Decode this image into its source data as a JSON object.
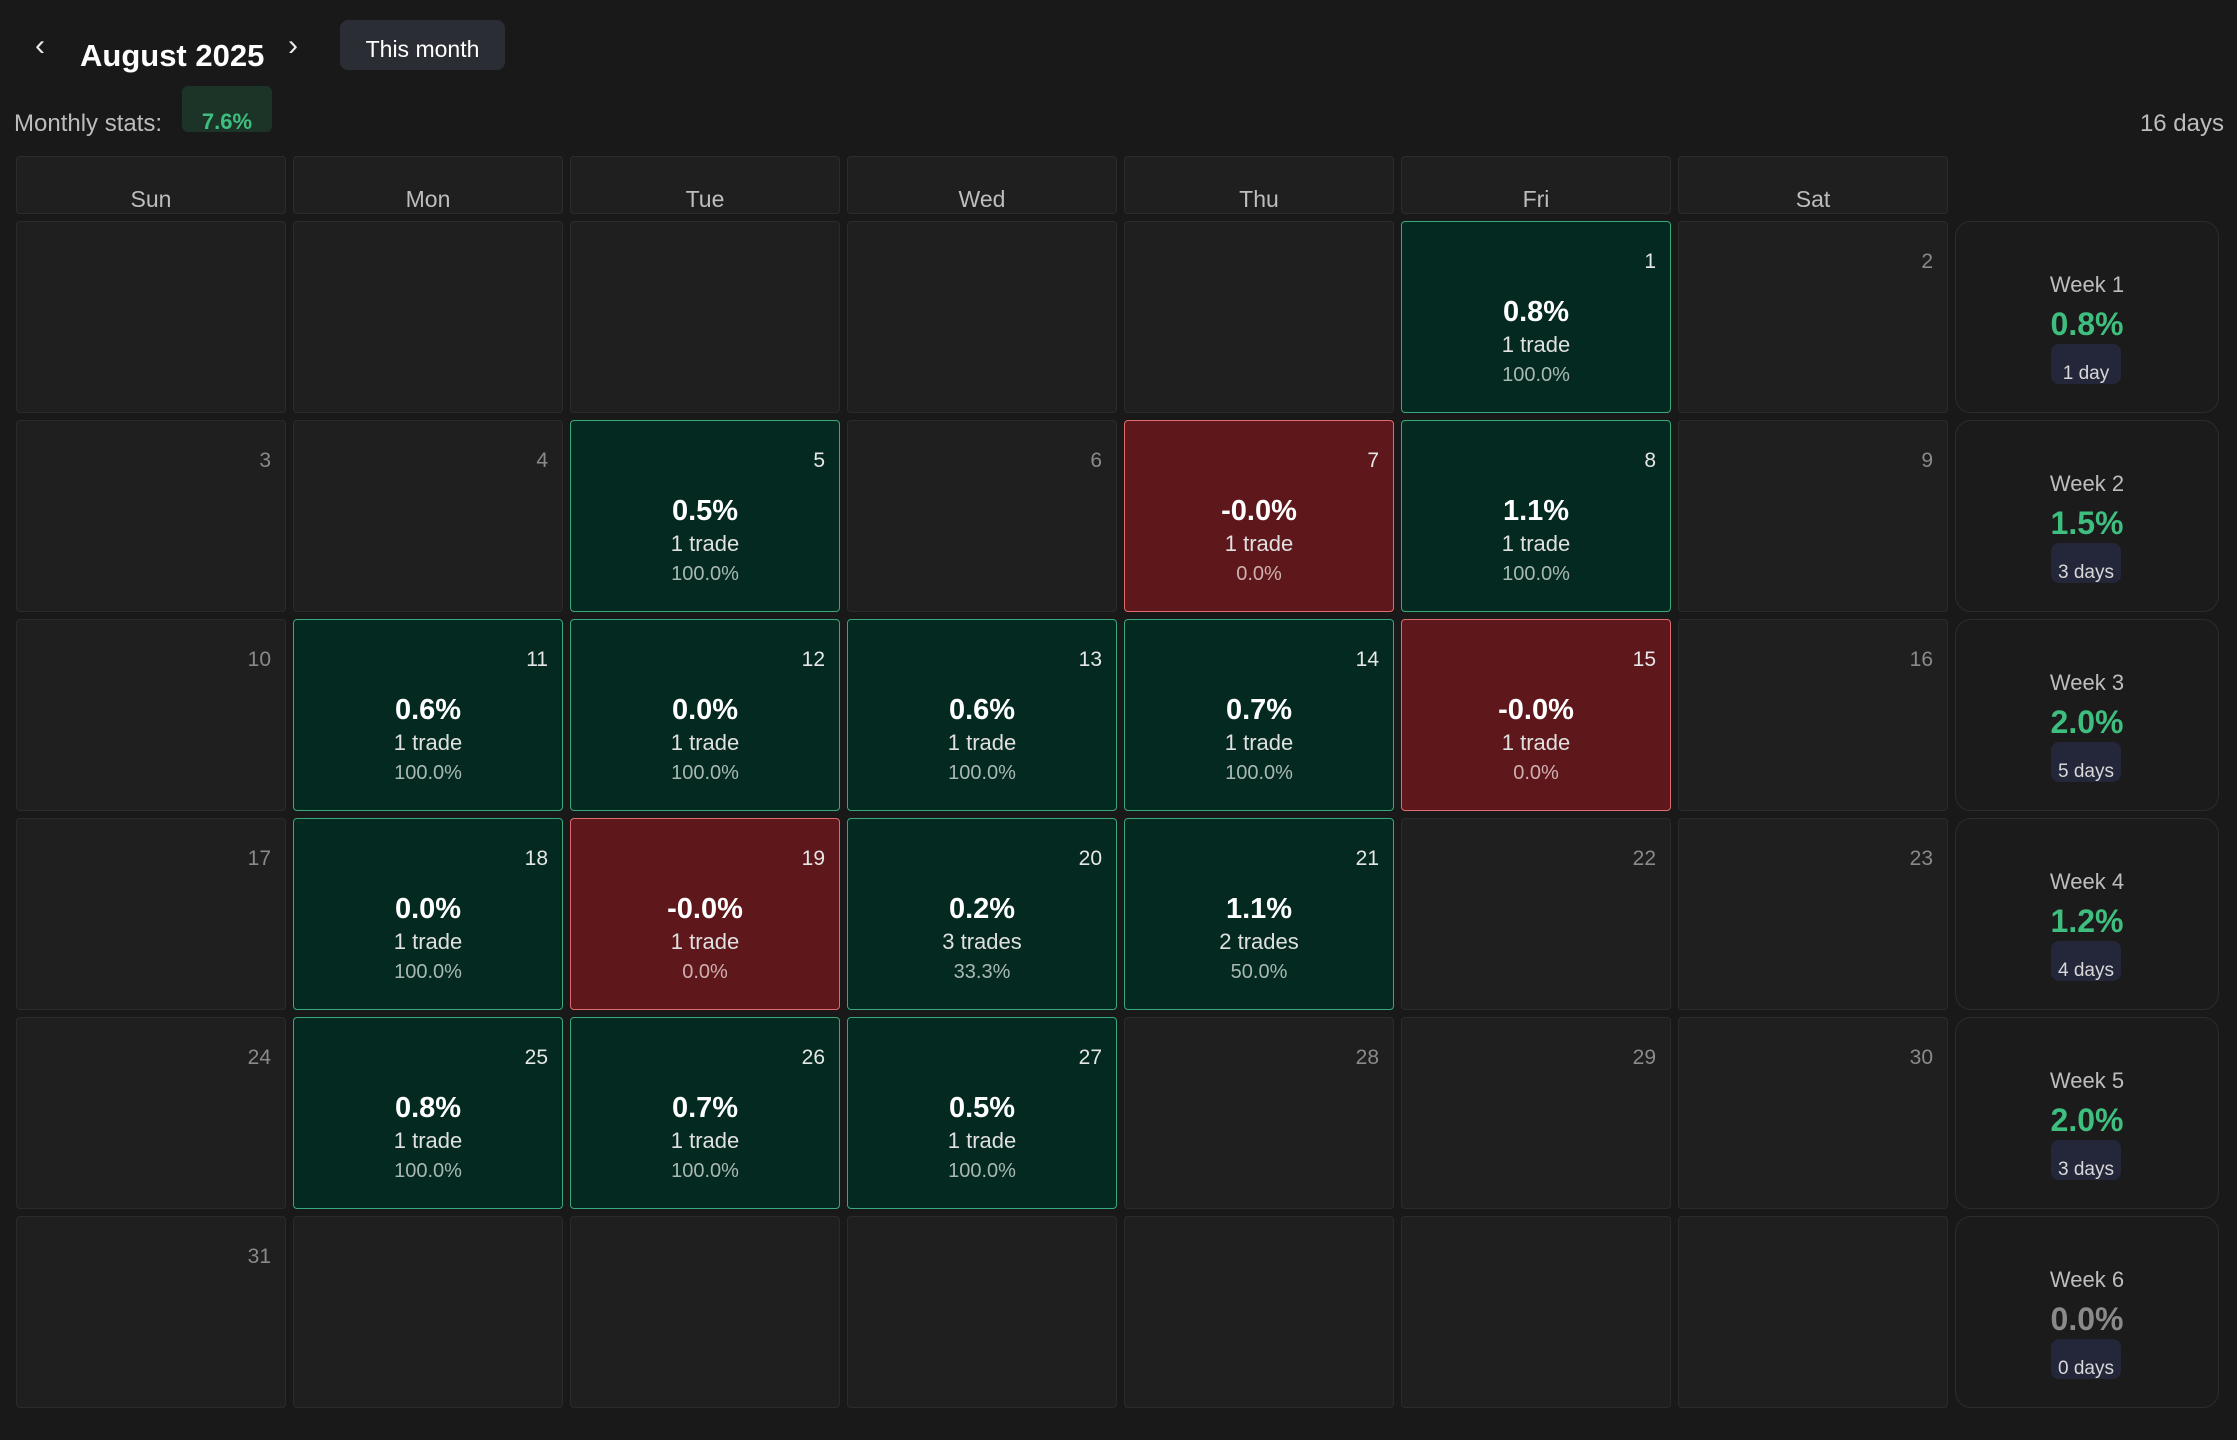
{
  "header": {
    "prev_icon": "chevron-left-icon",
    "next_icon": "chevron-right-icon",
    "month_title": "August 2025",
    "this_month_label": "This month"
  },
  "stats": {
    "label": "Monthly stats:",
    "value": "7.6%",
    "days": "16 days"
  },
  "weekdays": [
    "Sun",
    "Mon",
    "Tue",
    "Wed",
    "Thu",
    "Fri",
    "Sat"
  ],
  "colors": {
    "positive_bg": "#032920",
    "negative_bg": "#5e171b",
    "positive_text": "#3fbf7f"
  },
  "weeks": [
    {
      "label": "Week 1",
      "pnl": "0.8%",
      "days": "1 day",
      "cells": [
        null,
        null,
        null,
        null,
        null,
        {
          "day": "1",
          "pnl": "0.8%",
          "trades": "1 trade",
          "win": "100.0%",
          "status": "pos"
        },
        {
          "day": "2"
        }
      ]
    },
    {
      "label": "Week 2",
      "pnl": "1.5%",
      "days": "3 days",
      "cells": [
        {
          "day": "3"
        },
        {
          "day": "4"
        },
        {
          "day": "5",
          "pnl": "0.5%",
          "trades": "1 trade",
          "win": "100.0%",
          "status": "pos"
        },
        {
          "day": "6"
        },
        {
          "day": "7",
          "pnl": "-0.0%",
          "trades": "1 trade",
          "win": "0.0%",
          "status": "neg"
        },
        {
          "day": "8",
          "pnl": "1.1%",
          "trades": "1 trade",
          "win": "100.0%",
          "status": "pos"
        },
        {
          "day": "9"
        }
      ]
    },
    {
      "label": "Week 3",
      "pnl": "2.0%",
      "days": "5 days",
      "cells": [
        {
          "day": "10"
        },
        {
          "day": "11",
          "pnl": "0.6%",
          "trades": "1 trade",
          "win": "100.0%",
          "status": "pos"
        },
        {
          "day": "12",
          "pnl": "0.0%",
          "trades": "1 trade",
          "win": "100.0%",
          "status": "pos"
        },
        {
          "day": "13",
          "pnl": "0.6%",
          "trades": "1 trade",
          "win": "100.0%",
          "status": "pos"
        },
        {
          "day": "14",
          "pnl": "0.7%",
          "trades": "1 trade",
          "win": "100.0%",
          "status": "pos"
        },
        {
          "day": "15",
          "pnl": "-0.0%",
          "trades": "1 trade",
          "win": "0.0%",
          "status": "neg"
        },
        {
          "day": "16"
        }
      ]
    },
    {
      "label": "Week 4",
      "pnl": "1.2%",
      "days": "4 days",
      "cells": [
        {
          "day": "17"
        },
        {
          "day": "18",
          "pnl": "0.0%",
          "trades": "1 trade",
          "win": "100.0%",
          "status": "pos"
        },
        {
          "day": "19",
          "pnl": "-0.0%",
          "trades": "1 trade",
          "win": "0.0%",
          "status": "neg"
        },
        {
          "day": "20",
          "pnl": "0.2%",
          "trades": "3 trades",
          "win": "33.3%",
          "status": "pos"
        },
        {
          "day": "21",
          "pnl": "1.1%",
          "trades": "2 trades",
          "win": "50.0%",
          "status": "pos"
        },
        {
          "day": "22"
        },
        {
          "day": "23"
        }
      ]
    },
    {
      "label": "Week 5",
      "pnl": "2.0%",
      "days": "3 days",
      "cells": [
        {
          "day": "24"
        },
        {
          "day": "25",
          "pnl": "0.8%",
          "trades": "1 trade",
          "win": "100.0%",
          "status": "pos"
        },
        {
          "day": "26",
          "pnl": "0.7%",
          "trades": "1 trade",
          "win": "100.0%",
          "status": "pos"
        },
        {
          "day": "27",
          "pnl": "0.5%",
          "trades": "1 trade",
          "win": "100.0%",
          "status": "pos"
        },
        {
          "day": "28"
        },
        {
          "day": "29"
        },
        {
          "day": "30"
        }
      ]
    },
    {
      "label": "Week 6",
      "pnl": "0.0%",
      "days": "0 days",
      "cells": [
        {
          "day": "31"
        },
        null,
        null,
        null,
        null,
        null,
        null
      ]
    }
  ]
}
